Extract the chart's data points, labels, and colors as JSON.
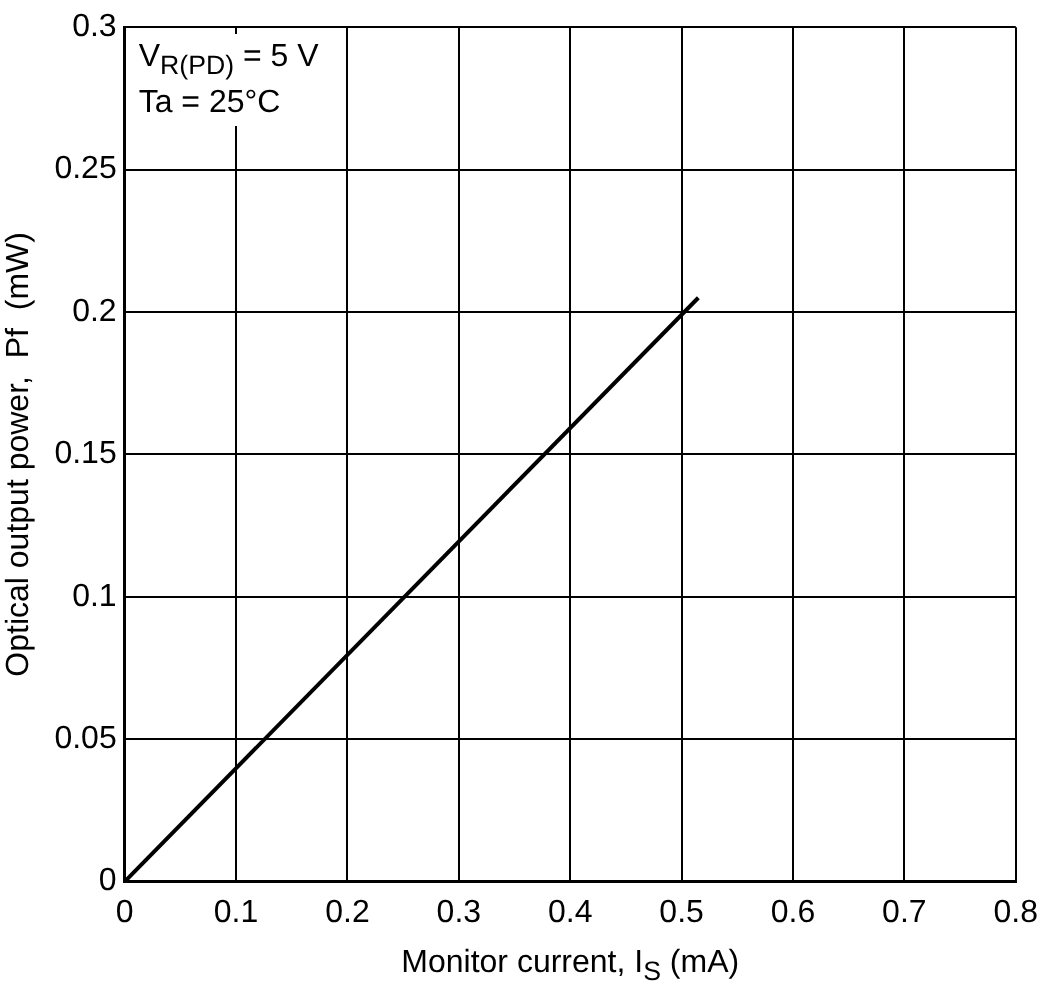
{
  "chart_data": {
    "type": "line",
    "xlabel": "Monitor current,  I$_{S}$  (mA)",
    "ylabel": "Optical output power,  Pf  (mW)",
    "annotations": [
      "V$_{R(PD)}$ = 5 V",
      "Ta = 25°C"
    ],
    "x": [
      0,
      0.515
    ],
    "series": [
      {
        "color": "#000000",
        "values": [
          0,
          0.205
        ]
      }
    ],
    "xlim": [
      0,
      0.8
    ],
    "xticks": [
      0,
      0.1,
      0.2,
      0.3,
      0.4,
      0.5,
      0.6,
      0.7,
      0.8
    ],
    "ylim": [
      0,
      0.3
    ],
    "yticks": [
      0,
      0.05,
      0.1,
      0.15,
      0.2,
      0.25,
      0.3
    ],
    "grid": true,
    "legend": false,
    "marker": "none",
    "line_style": "solid"
  }
}
